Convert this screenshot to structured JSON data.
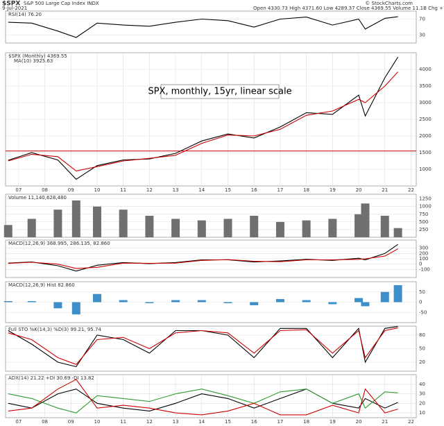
{
  "header": {
    "symbol": "$SPX",
    "name": "S&P 500 Large Cap Index INDX",
    "date": "9-Jul-2021",
    "quote": "Open 4330.73  High 4371.60  Low 4289.37  Close 4369.55  Volume 11.1B  Chg +72.08 (+1.68%)",
    "credit": "© StockCharts.com"
  },
  "chart_data": [
    {
      "type": "line",
      "label": "RSI(14) 76.20",
      "x": [
        2006.6,
        2007.5,
        2008.5,
        2009.2,
        2010,
        2011,
        2012,
        2013,
        2014,
        2015,
        2016,
        2017,
        2018,
        2019,
        2020,
        2020.25,
        2021,
        2021.5
      ],
      "xlim": [
        2006.5,
        2022.2
      ],
      "ylim": [
        10,
        90
      ],
      "yticks": [
        30,
        70
      ],
      "grid": true,
      "series": [
        {
          "color": "#000000",
          "values": [
            62,
            60,
            40,
            24,
            60,
            55,
            52,
            62,
            70,
            66,
            50,
            70,
            75,
            55,
            70,
            45,
            72,
            76
          ]
        }
      ]
    },
    {
      "type": "line",
      "label": "$SPX (Monthly) 4369.55",
      "annotation": "SPX, monthly, 15yr, linear scale",
      "hline": 1550,
      "hline_color": "#cc0000",
      "x": [
        2006.6,
        2007.5,
        2008.5,
        2009.2,
        2010,
        2011,
        2012,
        2013,
        2014,
        2015,
        2016,
        2017,
        2018,
        2019,
        2020,
        2020.25,
        2021,
        2021.5
      ],
      "xlim": [
        2006.5,
        2022.2
      ],
      "ylim": [
        500,
        4500
      ],
      "yticks": [
        1000,
        1500,
        2000,
        2500,
        3000,
        3500,
        4000
      ],
      "xticks": [
        {
          "value": 2007,
          "label": "07"
        },
        {
          "value": 2008,
          "label": "08"
        },
        {
          "value": 2009,
          "label": "09"
        },
        {
          "value": 2010,
          "label": "10"
        },
        {
          "value": 2011,
          "label": "11"
        },
        {
          "value": 2012,
          "label": "12"
        },
        {
          "value": 2013,
          "label": "13"
        },
        {
          "value": 2014,
          "label": "14"
        },
        {
          "value": 2015,
          "label": "15"
        },
        {
          "value": 2016,
          "label": "16"
        },
        {
          "value": 2017,
          "label": "17"
        },
        {
          "value": 2018,
          "label": "18"
        },
        {
          "value": 2019,
          "label": "19"
        },
        {
          "value": 2020,
          "label": "20"
        },
        {
          "value": 2021,
          "label": "21"
        },
        {
          "value": 2022,
          "label": "22"
        }
      ],
      "grid": true,
      "series": [
        {
          "color": "#000000",
          "values": [
            1270,
            1500,
            1280,
            700,
            1110,
            1280,
            1310,
            1480,
            1850,
            2060,
            1940,
            2270,
            2700,
            2650,
            3230,
            2600,
            3750,
            4370
          ]
        },
        {
          "name": "MA(10) 3925.63",
          "color": "#cc0000",
          "values": [
            1250,
            1450,
            1380,
            950,
            1080,
            1250,
            1330,
            1420,
            1780,
            2030,
            2000,
            2200,
            2620,
            2750,
            3100,
            3000,
            3500,
            3926
          ]
        }
      ]
    },
    {
      "type": "bar",
      "label": "Volume 11,140,628,480",
      "x": [
        2006.6,
        2007.5,
        2008.5,
        2009.2,
        2010,
        2011,
        2012,
        2013,
        2014,
        2015,
        2016,
        2017,
        2018,
        2019,
        2020,
        2020.25,
        2021,
        2021.5
      ],
      "xlim": [
        2006.5,
        2022.2
      ],
      "ylim": [
        0,
        1400
      ],
      "yticks": [
        250,
        500,
        750,
        1000,
        1250
      ],
      "grid": true,
      "series": [
        {
          "color": "#707070",
          "values": [
            400,
            600,
            900,
            1200,
            1000,
            900,
            700,
            600,
            550,
            600,
            700,
            500,
            550,
            600,
            750,
            1100,
            700,
            300
          ]
        }
      ]
    },
    {
      "type": "line",
      "label": "MACD(12,26,9) 368.995, 286.135, 82.860",
      "x": [
        2006.6,
        2007.5,
        2008.5,
        2009.2,
        2010,
        2011,
        2012,
        2013,
        2014,
        2015,
        2016,
        2017,
        2018,
        2019,
        2020,
        2020.25,
        2021,
        2021.5
      ],
      "xlim": [
        2006.5,
        2022.2
      ],
      "ylim": [
        -250,
        450
      ],
      "yticks": [
        -100,
        0,
        100,
        200,
        300
      ],
      "grid": true,
      "series": [
        {
          "color": "#000000",
          "values": [
            20,
            40,
            -30,
            -130,
            -20,
            30,
            10,
            30,
            80,
            80,
            40,
            60,
            90,
            70,
            110,
            80,
            200,
            369
          ]
        },
        {
          "color": "#cc0000",
          "values": [
            15,
            35,
            0,
            -80,
            -60,
            20,
            15,
            20,
            70,
            85,
            55,
            45,
            80,
            80,
            90,
            100,
            150,
            286
          ]
        }
      ]
    },
    {
      "type": "bar",
      "label": "MACD(12,26,9) Hist 82.860",
      "x": [
        2006.6,
        2007.5,
        2008.5,
        2009.2,
        2010,
        2011,
        2012,
        2013,
        2014,
        2015,
        2016,
        2017,
        2018,
        2019,
        2020,
        2020.25,
        2021,
        2021.5
      ],
      "xlim": [
        2006.5,
        2022.2
      ],
      "ylim": [
        -100,
        100
      ],
      "yticks": [
        -50,
        0,
        50
      ],
      "grid": true,
      "series": [
        {
          "color": "#3d8fc9",
          "values": [
            5,
            5,
            -30,
            -60,
            40,
            10,
            -5,
            10,
            10,
            -5,
            -15,
            15,
            10,
            -10,
            20,
            -20,
            50,
            83
          ]
        }
      ]
    },
    {
      "type": "line",
      "label": "Full STO %K(14,3) %D(3) 99.21, 95.74",
      "x": [
        2006.6,
        2007.5,
        2008.5,
        2009.2,
        2010,
        2011,
        2012,
        2013,
        2014,
        2015,
        2016,
        2017,
        2018,
        2019,
        2020,
        2020.25,
        2021,
        2021.5
      ],
      "xlim": [
        2006.5,
        2022.2
      ],
      "ylim": [
        0,
        100
      ],
      "yticks": [
        20,
        50,
        80
      ],
      "grid": true,
      "series": [
        {
          "color": "#000000",
          "values": [
            90,
            60,
            20,
            10,
            80,
            70,
            40,
            90,
            90,
            80,
            30,
            95,
            95,
            30,
            95,
            20,
            95,
            99
          ]
        },
        {
          "color": "#cc0000",
          "values": [
            85,
            70,
            30,
            15,
            70,
            75,
            50,
            85,
            90,
            85,
            40,
            90,
            92,
            40,
            90,
            30,
            90,
            96
          ]
        }
      ]
    },
    {
      "type": "line",
      "label": "ADX(14) 21.22 +DI 30.69 -DI 13.82",
      "x": [
        2006.6,
        2007.5,
        2008.5,
        2009.2,
        2010,
        2011,
        2012,
        2013,
        2014,
        2015,
        2016,
        2017,
        2018,
        2019,
        2020,
        2020.25,
        2021,
        2021.5
      ],
      "xlim": [
        2006.5,
        2022.2
      ],
      "ylim": [
        5,
        50
      ],
      "yticks": [
        10,
        20,
        30,
        40
      ],
      "grid": true,
      "xticks": [
        {
          "value": 2007,
          "label": "07"
        },
        {
          "value": 2008,
          "label": "08"
        },
        {
          "value": 2009,
          "label": "09"
        },
        {
          "value": 2010,
          "label": "10"
        },
        {
          "value": 2011,
          "label": "11"
        },
        {
          "value": 2012,
          "label": "12"
        },
        {
          "value": 2013,
          "label": "13"
        },
        {
          "value": 2014,
          "label": "14"
        },
        {
          "value": 2015,
          "label": "15"
        },
        {
          "value": 2016,
          "label": "16"
        },
        {
          "value": 2017,
          "label": "17"
        },
        {
          "value": 2018,
          "label": "18"
        },
        {
          "value": 2019,
          "label": "19"
        },
        {
          "value": 2020,
          "label": "20"
        },
        {
          "value": 2021,
          "label": "21"
        },
        {
          "value": 2022,
          "label": "22"
        }
      ],
      "series": [
        {
          "color": "#000000",
          "values": [
            20,
            15,
            30,
            35,
            20,
            15,
            12,
            20,
            30,
            25,
            15,
            25,
            35,
            20,
            15,
            25,
            15,
            21
          ]
        },
        {
          "color": "#2e9a2e",
          "values": [
            30,
            25,
            15,
            10,
            28,
            25,
            22,
            30,
            35,
            28,
            20,
            32,
            35,
            20,
            30,
            15,
            32,
            31
          ]
        },
        {
          "color": "#cc0000",
          "values": [
            12,
            15,
            35,
            45,
            15,
            18,
            15,
            10,
            8,
            12,
            20,
            8,
            8,
            18,
            10,
            35,
            10,
            14
          ]
        }
      ]
    }
  ]
}
